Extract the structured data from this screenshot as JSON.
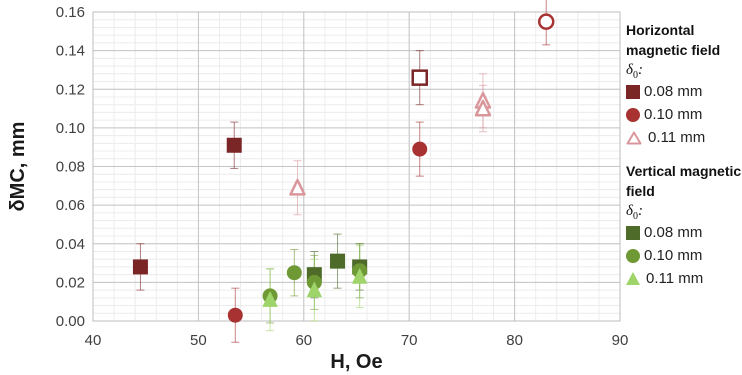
{
  "chart_data": {
    "type": "scatter",
    "xlabel": "H, Oe",
    "ylabel": "δMC, mm",
    "xlim": [
      40,
      90
    ],
    "ylim": [
      0,
      0.16
    ],
    "x_ticks": [
      "40",
      "50",
      "60",
      "70",
      "80",
      "90"
    ],
    "y_ticks": [
      "0.00",
      "0.02",
      "0.04",
      "0.06",
      "0.08",
      "0.10",
      "0.12",
      "0.14",
      "0.16"
    ],
    "grid": true,
    "legend_position": "right",
    "legend_groups": [
      {
        "title": "Horizontal magnetic field",
        "subtitle": "δ",
        "subscript": "0",
        "suffix": ":"
      },
      {
        "title": "Vertical magnetic field",
        "subtitle": "δ",
        "subscript": "0",
        "suffix": ":"
      }
    ],
    "series": [
      {
        "name": "0.08 mm",
        "group": "Horizontal magnetic field",
        "marker": "square",
        "color": "#7b2626",
        "points": [
          {
            "x": 44.5,
            "y": 0.028,
            "err": 0.012,
            "filled": true
          },
          {
            "x": 53.4,
            "y": 0.091,
            "err": 0.012,
            "filled": true
          },
          {
            "x": 71.0,
            "y": 0.126,
            "err": 0.014,
            "filled": false
          }
        ]
      },
      {
        "name": "0.10 mm",
        "group": "Horizontal magnetic field",
        "marker": "circle",
        "color": "#a83232",
        "points": [
          {
            "x": 53.5,
            "y": 0.003,
            "err": 0.014,
            "filled": true
          },
          {
            "x": 71.0,
            "y": 0.089,
            "err": 0.014,
            "filled": true
          },
          {
            "x": 83.0,
            "y": 0.155,
            "err": 0.012,
            "filled": false
          }
        ]
      },
      {
        "name": "0.11 mm",
        "group": "Horizontal magnetic field",
        "marker": "triangle",
        "color": "#d9979c",
        "points": [
          {
            "x": 59.4,
            "y": 0.069,
            "err": 0.014,
            "filled": false
          },
          {
            "x": 77.0,
            "y": 0.114,
            "err": 0.014,
            "filled": false
          },
          {
            "x": 77.0,
            "y": 0.11,
            "err": 0.012,
            "filled": false
          }
        ]
      },
      {
        "name": "0.08 mm",
        "group": "Vertical magnetic field",
        "marker": "square",
        "color": "#4e6b2a",
        "points": [
          {
            "x": 61.0,
            "y": 0.024,
            "err": 0.012,
            "filled": true
          },
          {
            "x": 63.2,
            "y": 0.031,
            "err": 0.014,
            "filled": true
          },
          {
            "x": 65.3,
            "y": 0.028,
            "err": 0.012,
            "filled": true
          }
        ]
      },
      {
        "name": "0.10 mm",
        "group": "Vertical magnetic field",
        "marker": "circle",
        "color": "#6f9934",
        "points": [
          {
            "x": 56.8,
            "y": 0.013,
            "err": 0.014,
            "filled": true
          },
          {
            "x": 59.1,
            "y": 0.025,
            "err": 0.012,
            "filled": true
          },
          {
            "x": 61.0,
            "y": 0.02,
            "err": 0.014,
            "filled": true
          },
          {
            "x": 65.3,
            "y": 0.026,
            "err": 0.014,
            "filled": true
          }
        ]
      },
      {
        "name": "0.11 mm",
        "group": "Vertical magnetic field",
        "marker": "triangle",
        "color": "#9ed46a",
        "points": [
          {
            "x": 56.8,
            "y": 0.011,
            "err": 0.016,
            "filled": true
          },
          {
            "x": 61.0,
            "y": 0.016,
            "err": 0.016,
            "filled": true
          },
          {
            "x": 65.3,
            "y": 0.023,
            "err": 0.016,
            "filled": true
          }
        ]
      }
    ]
  }
}
